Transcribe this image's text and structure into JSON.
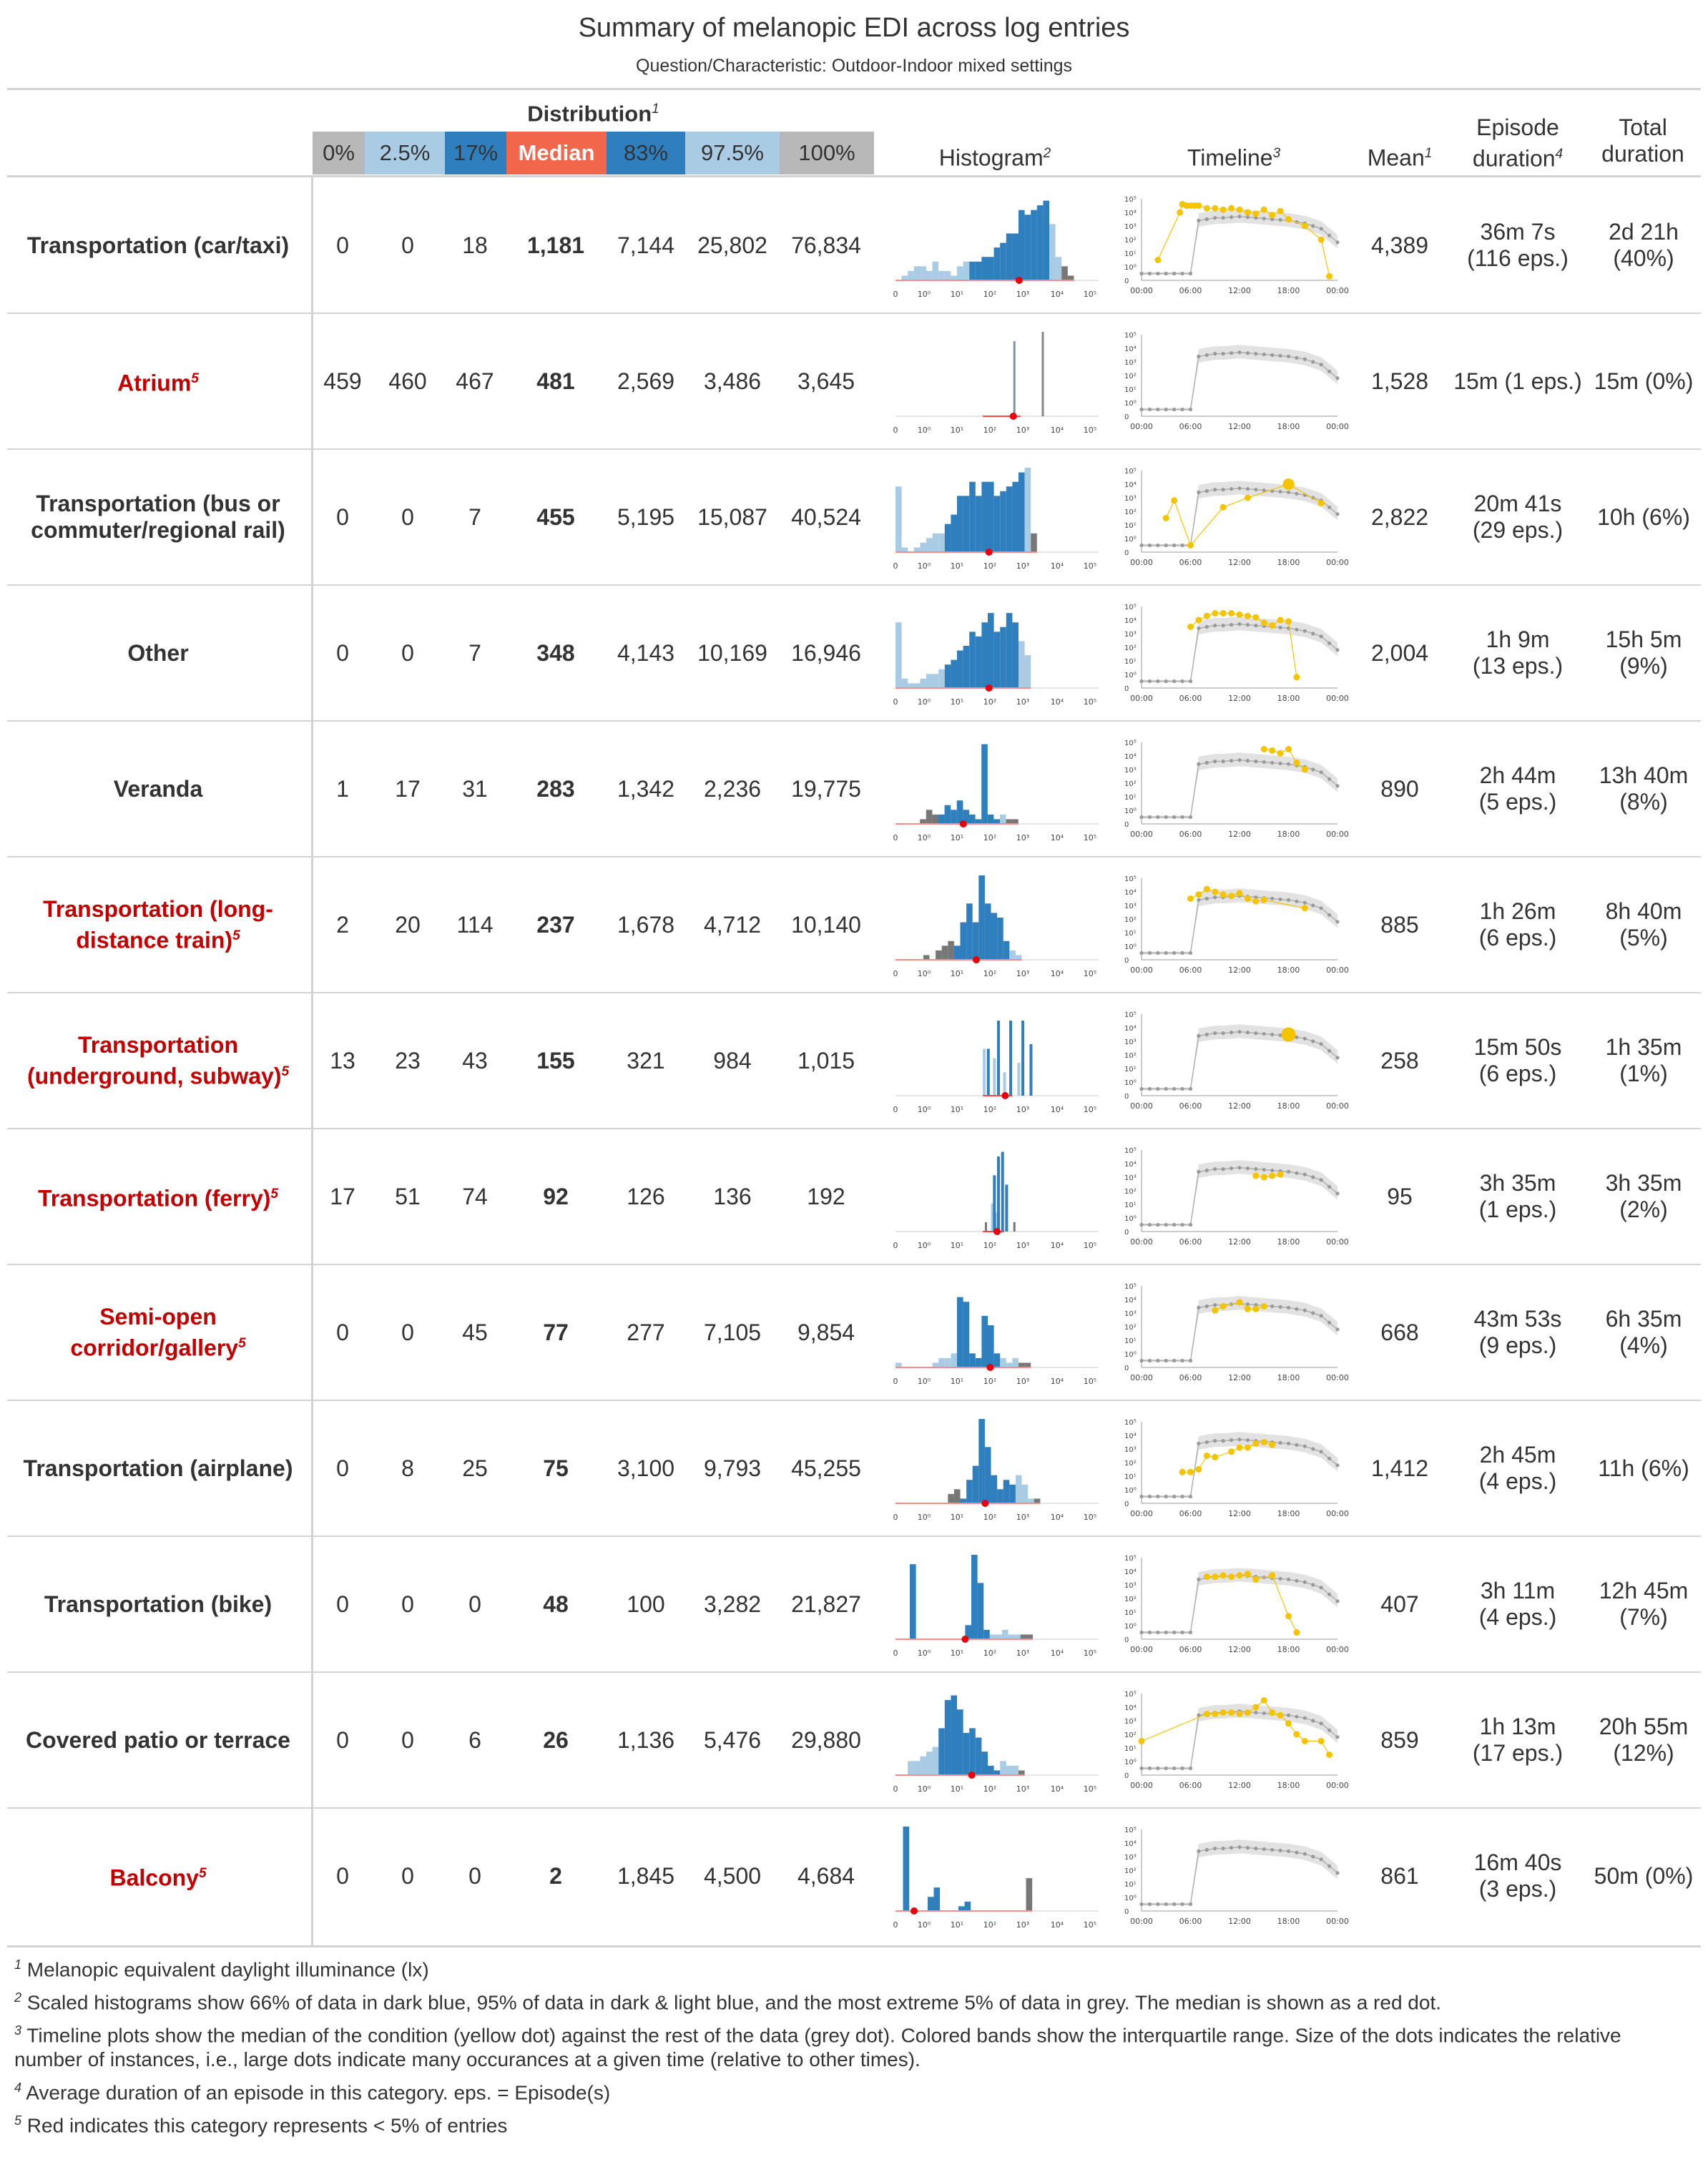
{
  "title": "Summary of melanopic EDI across log entries",
  "subtitle": "Question/Characteristic: Outdoor-Indoor mixed settings",
  "header": {
    "distribution": "Distribution",
    "distribution_note": "1",
    "quantiles": [
      "0%",
      "2.5%",
      "17%",
      "Median",
      "83%",
      "97.5%",
      "100%"
    ],
    "histogram": "Histogram",
    "histogram_note": "2",
    "timeline": "Timeline",
    "timeline_note": "3",
    "mean": "Mean",
    "mean_note": "1",
    "episode_duration_l1": "Episode",
    "episode_duration_l2": "duration",
    "episode_note": "4",
    "total_duration_l1": "Total",
    "total_duration_l2": "duration"
  },
  "colors": {
    "light_grey": "#b8b8b8",
    "light_blue": "#a9cbe3",
    "dark_blue": "#2f7ebd",
    "median_red": "#f2674c",
    "red_dot": "#e8000b",
    "grey_dot": "#9a9a9a",
    "yellow_dot": "#f5c400",
    "red_text": "#c40000",
    "band_grey": "#e2e2e2"
  },
  "histogram_axis_labels": [
    "0",
    "10⁰",
    "10¹",
    "10²",
    "10³",
    "10⁴",
    "10⁵"
  ],
  "timeline_axis": {
    "y_labels": [
      "0",
      "10⁰",
      "10¹",
      "10²",
      "10³",
      "10⁴",
      "10⁵"
    ],
    "x_labels": [
      "00:00",
      "06:00",
      "12:00",
      "18:00",
      "00:00"
    ]
  },
  "rows": [
    {
      "label_lines": [
        "Transportation (car/taxi)"
      ],
      "red": false,
      "q": [
        "0",
        "0",
        "18",
        "1,181",
        "7,144",
        "25,802",
        "76,834"
      ],
      "mean": "4,389",
      "episode": [
        "36m 7s",
        "(116 eps.)"
      ],
      "total": [
        "2d 21h",
        "(40%)"
      ]
    },
    {
      "label_lines": [
        "Atrium"
      ],
      "red": true,
      "q": [
        "459",
        "460",
        "467",
        "481",
        "2,569",
        "3,486",
        "3,645"
      ],
      "mean": "1,528",
      "episode": [
        "15m (1 eps.)"
      ],
      "total": [
        "15m (0%)"
      ]
    },
    {
      "label_lines": [
        "Transportation (bus or",
        "commuter/regional rail)"
      ],
      "red": false,
      "q": [
        "0",
        "0",
        "7",
        "455",
        "5,195",
        "15,087",
        "40,524"
      ],
      "mean": "2,822",
      "episode": [
        "20m 41s",
        "(29 eps.)"
      ],
      "total": [
        "10h (6%)"
      ]
    },
    {
      "label_lines": [
        "Other"
      ],
      "red": false,
      "q": [
        "0",
        "0",
        "7",
        "348",
        "4,143",
        "10,169",
        "16,946"
      ],
      "mean": "2,004",
      "episode": [
        "1h 9m",
        "(13 eps.)"
      ],
      "total": [
        "15h 5m",
        "(9%)"
      ]
    },
    {
      "label_lines": [
        "Veranda"
      ],
      "red": false,
      "q": [
        "1",
        "17",
        "31",
        "283",
        "1,342",
        "2,236",
        "19,775"
      ],
      "mean": "890",
      "episode": [
        "2h 44m",
        "(5 eps.)"
      ],
      "total": [
        "13h 40m",
        "(8%)"
      ]
    },
    {
      "label_lines": [
        "Transportation (long-",
        "distance train)"
      ],
      "red": true,
      "q": [
        "2",
        "20",
        "114",
        "237",
        "1,678",
        "4,712",
        "10,140"
      ],
      "mean": "885",
      "episode": [
        "1h 26m",
        "(6 eps.)"
      ],
      "total": [
        "8h 40m",
        "(5%)"
      ]
    },
    {
      "label_lines": [
        "Transportation",
        "(underground, subway)"
      ],
      "red": true,
      "q": [
        "13",
        "23",
        "43",
        "155",
        "321",
        "984",
        "1,015"
      ],
      "mean": "258",
      "episode": [
        "15m 50s",
        "(6 eps.)"
      ],
      "total": [
        "1h 35m",
        "(1%)"
      ]
    },
    {
      "label_lines": [
        "Transportation (ferry)"
      ],
      "red": true,
      "q": [
        "17",
        "51",
        "74",
        "92",
        "126",
        "136",
        "192"
      ],
      "mean": "95",
      "episode": [
        "3h 35m",
        "(1 eps.)"
      ],
      "total": [
        "3h 35m",
        "(2%)"
      ]
    },
    {
      "label_lines": [
        "Semi-open",
        "corridor/gallery"
      ],
      "red": true,
      "q": [
        "0",
        "0",
        "45",
        "77",
        "277",
        "7,105",
        "9,854"
      ],
      "mean": "668",
      "episode": [
        "43m 53s",
        "(9 eps.)"
      ],
      "total": [
        "6h 35m",
        "(4%)"
      ]
    },
    {
      "label_lines": [
        "Transportation (airplane)"
      ],
      "red": false,
      "q": [
        "0",
        "8",
        "25",
        "75",
        "3,100",
        "9,793",
        "45,255"
      ],
      "mean": "1,412",
      "episode": [
        "2h 45m",
        "(4 eps.)"
      ],
      "total": [
        "11h (6%)"
      ]
    },
    {
      "label_lines": [
        "Transportation (bike)"
      ],
      "red": false,
      "q": [
        "0",
        "0",
        "0",
        "48",
        "100",
        "3,282",
        "21,827"
      ],
      "mean": "407",
      "episode": [
        "3h 11m",
        "(4 eps.)"
      ],
      "total": [
        "12h 45m",
        "(7%)"
      ]
    },
    {
      "label_lines": [
        "Covered patio or terrace"
      ],
      "red": false,
      "q": [
        "0",
        "0",
        "6",
        "26",
        "1,136",
        "5,476",
        "29,880"
      ],
      "mean": "859",
      "episode": [
        "1h 13m",
        "(17 eps.)"
      ],
      "total": [
        "20h 55m",
        "(12%)"
      ]
    },
    {
      "label_lines": [
        "Balcony"
      ],
      "red": true,
      "q": [
        "0",
        "0",
        "0",
        "2",
        "1,845",
        "4,500",
        "4,684"
      ],
      "mean": "861",
      "episode": [
        "16m 40s",
        "(3 eps.)"
      ],
      "total": [
        "50m (0%)"
      ]
    }
  ],
  "footnotes": [
    {
      "mark": "1",
      "text": "Melanopic equivalent daylight illuminance (lx)"
    },
    {
      "mark": "2",
      "text": "Scaled histograms show 66% of data in dark blue, 95% of data in dark & light blue, and the most extreme 5% of data in grey. The median is shown as a red dot."
    },
    {
      "mark": "3",
      "text": "Timeline plots show the median of the condition (yellow dot) against the rest of the data (grey dot). Colored bands show the interquartile range. Size of the dots indicates the relative number of instances, i.e., large dots indicate many occurances at a given time (relative to other times)."
    },
    {
      "mark": "4",
      "text": "Average duration of an episode in this category. eps. = Episode(s)"
    },
    {
      "mark": "5",
      "text": "Red indicates this category represents < 5% of entries"
    }
  ]
}
